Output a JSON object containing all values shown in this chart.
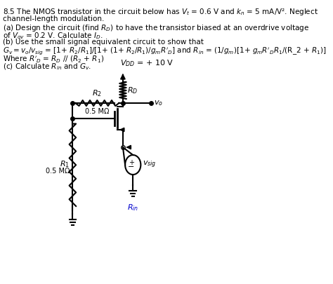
{
  "title_text": "8.5 The NMOS transistor in the circuit below has $V_t$ = 0.6 V and $k_n$ = 5 mA/V². Neglect\nchannel-length modulation.\n(a) Design the circuit (find $R_D$) to have the transistor biased at an overdrive voltage\nof $V_{ov}$ = 0.2 V. Calculate $I_D$.\n(b) Use the small signal equivalent circuit to show that\n$G_v = v_o/v_{sig}$ = [1+ $R_2$/$R_1$]/[1+ (1+ $R_2$/$R_1$)/$g_m$$R'_D$] and $R_{in}$ = (1/$g_m$)[1+ $g_m$$R'_D$$R_1$/(R_2 + $R_1$)]\nWhere $R'_D$ = $R_D$ // ($R_2$ + $R_1$)\n(c) Calculate $R_{in}$ and $G_v$.",
  "background_color": "#ffffff",
  "line_color": "#000000",
  "text_color": "#000000"
}
